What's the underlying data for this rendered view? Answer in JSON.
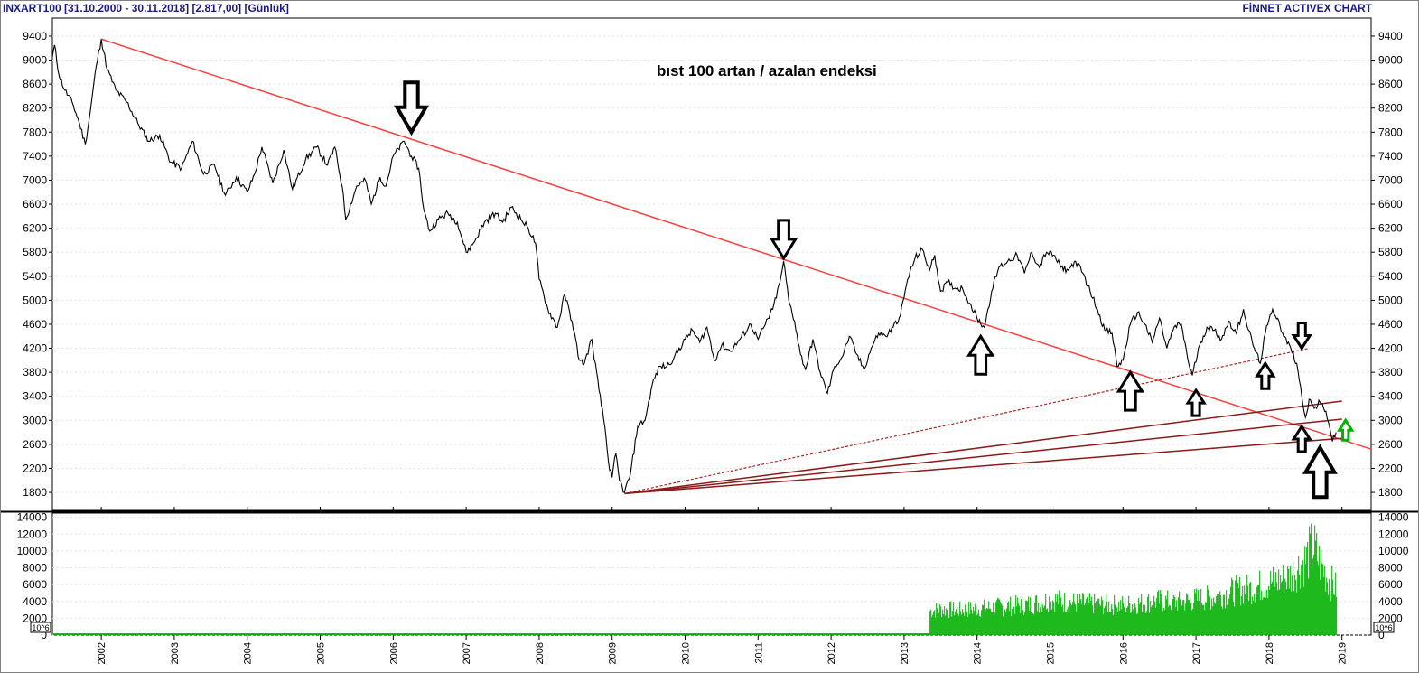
{
  "header": {
    "left_text": "INXART100  [31.10.2000 - 30.11.2018]  [2.817,00]  [Günlük]",
    "right_text": "FİNNET ACTIVEX CHART"
  },
  "chart_data": [
    {
      "type": "line",
      "series_name": "INXART100",
      "annotation": "bıst 100 artan / azalan endeksi",
      "x_unit": "year",
      "xlim": [
        2001.33,
        2019.4
      ],
      "ylim": [
        1500,
        9700
      ],
      "y_ticks": [
        1800,
        2200,
        2600,
        3000,
        3400,
        3800,
        4200,
        4600,
        5000,
        5400,
        5800,
        6200,
        6600,
        7000,
        7400,
        7800,
        8200,
        8600,
        9000,
        9400
      ],
      "x_ticks": [
        "2002",
        "2003",
        "2004",
        "2005",
        "2006",
        "2007",
        "2008",
        "2009",
        "2010",
        "2011",
        "2012",
        "2013",
        "2014",
        "2015",
        "2016",
        "2017",
        "2018",
        "2019"
      ],
      "line_color": "#000000",
      "points": [
        [
          2001.33,
          9050
        ],
        [
          2001.36,
          9250
        ],
        [
          2001.42,
          8750
        ],
        [
          2001.5,
          8500
        ],
        [
          2001.6,
          8300
        ],
        [
          2001.7,
          7950
        ],
        [
          2001.78,
          7600
        ],
        [
          2001.85,
          8150
        ],
        [
          2001.93,
          8900
        ],
        [
          2002.0,
          9350
        ],
        [
          2002.08,
          8850
        ],
        [
          2002.2,
          8500
        ],
        [
          2002.35,
          8300
        ],
        [
          2002.5,
          7950
        ],
        [
          2002.65,
          7650
        ],
        [
          2002.8,
          7750
        ],
        [
          2002.95,
          7300
        ],
        [
          2003.1,
          7200
        ],
        [
          2003.25,
          7650
        ],
        [
          2003.4,
          7100
        ],
        [
          2003.55,
          7250
        ],
        [
          2003.7,
          6750
        ],
        [
          2003.85,
          7050
        ],
        [
          2004.0,
          6800
        ],
        [
          2004.1,
          7100
        ],
        [
          2004.2,
          7550
        ],
        [
          2004.35,
          6950
        ],
        [
          2004.5,
          7500
        ],
        [
          2004.62,
          6850
        ],
        [
          2004.8,
          7350
        ],
        [
          2004.95,
          7550
        ],
        [
          2005.1,
          7250
        ],
        [
          2005.2,
          7550
        ],
        [
          2005.3,
          6900
        ],
        [
          2005.35,
          6350
        ],
        [
          2005.5,
          6900
        ],
        [
          2005.62,
          7000
        ],
        [
          2005.7,
          6600
        ],
        [
          2005.82,
          7050
        ],
        [
          2005.9,
          6900
        ],
        [
          2006.0,
          7400
        ],
        [
          2006.15,
          7650
        ],
        [
          2006.25,
          7400
        ],
        [
          2006.35,
          7200
        ],
        [
          2006.42,
          6500
        ],
        [
          2006.5,
          6150
        ],
        [
          2006.62,
          6350
        ],
        [
          2006.75,
          6450
        ],
        [
          2006.88,
          6300
        ],
        [
          2007.0,
          5800
        ],
        [
          2007.1,
          5950
        ],
        [
          2007.25,
          6300
        ],
        [
          2007.4,
          6450
        ],
        [
          2007.5,
          6300
        ],
        [
          2007.62,
          6550
        ],
        [
          2007.75,
          6350
        ],
        [
          2007.85,
          6200
        ],
        [
          2007.95,
          5950
        ],
        [
          2008.0,
          5350
        ],
        [
          2008.12,
          4850
        ],
        [
          2008.25,
          4550
        ],
        [
          2008.35,
          5100
        ],
        [
          2008.45,
          4650
        ],
        [
          2008.55,
          4000
        ],
        [
          2008.62,
          3950
        ],
        [
          2008.72,
          4350
        ],
        [
          2008.82,
          3500
        ],
        [
          2008.9,
          2900
        ],
        [
          2008.95,
          2300
        ],
        [
          2009.0,
          2050
        ],
        [
          2009.05,
          2450
        ],
        [
          2009.1,
          2000
        ],
        [
          2009.17,
          1800
        ],
        [
          2009.25,
          2100
        ],
        [
          2009.35,
          2900
        ],
        [
          2009.45,
          3000
        ],
        [
          2009.55,
          3600
        ],
        [
          2009.65,
          3900
        ],
        [
          2009.75,
          3900
        ],
        [
          2009.85,
          4050
        ],
        [
          2010.0,
          4350
        ],
        [
          2010.1,
          4500
        ],
        [
          2010.2,
          4300
        ],
        [
          2010.3,
          4550
        ],
        [
          2010.4,
          4000
        ],
        [
          2010.5,
          4250
        ],
        [
          2010.62,
          4150
        ],
        [
          2010.75,
          4350
        ],
        [
          2010.9,
          4600
        ],
        [
          2011.0,
          4350
        ],
        [
          2011.1,
          4600
        ],
        [
          2011.2,
          4850
        ],
        [
          2011.3,
          5300
        ],
        [
          2011.35,
          5650
        ],
        [
          2011.42,
          5000
        ],
        [
          2011.5,
          4650
        ],
        [
          2011.58,
          4100
        ],
        [
          2011.65,
          3850
        ],
        [
          2011.75,
          4350
        ],
        [
          2011.85,
          3800
        ],
        [
          2011.95,
          3450
        ],
        [
          2012.05,
          3900
        ],
        [
          2012.15,
          4050
        ],
        [
          2012.25,
          4400
        ],
        [
          2012.35,
          4100
        ],
        [
          2012.45,
          3850
        ],
        [
          2012.55,
          4200
        ],
        [
          2012.65,
          4450
        ],
        [
          2012.75,
          4400
        ],
        [
          2012.85,
          4550
        ],
        [
          2012.95,
          4750
        ],
        [
          2013.05,
          5350
        ],
        [
          2013.15,
          5700
        ],
        [
          2013.25,
          5850
        ],
        [
          2013.35,
          5500
        ],
        [
          2013.42,
          5750
        ],
        [
          2013.5,
          5150
        ],
        [
          2013.6,
          5300
        ],
        [
          2013.7,
          5200
        ],
        [
          2013.8,
          5200
        ],
        [
          2013.9,
          4950
        ],
        [
          2014.0,
          4700
        ],
        [
          2014.1,
          4550
        ],
        [
          2014.2,
          5150
        ],
        [
          2014.3,
          5550
        ],
        [
          2014.42,
          5650
        ],
        [
          2014.55,
          5750
        ],
        [
          2014.65,
          5450
        ],
        [
          2014.75,
          5800
        ],
        [
          2014.85,
          5550
        ],
        [
          2014.95,
          5800
        ],
        [
          2015.05,
          5750
        ],
        [
          2015.15,
          5550
        ],
        [
          2015.25,
          5500
        ],
        [
          2015.35,
          5650
        ],
        [
          2015.45,
          5450
        ],
        [
          2015.55,
          5150
        ],
        [
          2015.65,
          4850
        ],
        [
          2015.75,
          4500
        ],
        [
          2015.85,
          4450
        ],
        [
          2015.92,
          3900
        ],
        [
          2016.0,
          4000
        ],
        [
          2016.1,
          4600
        ],
        [
          2016.2,
          4800
        ],
        [
          2016.3,
          4600
        ],
        [
          2016.4,
          4300
        ],
        [
          2016.5,
          4700
        ],
        [
          2016.6,
          4200
        ],
        [
          2016.7,
          4550
        ],
        [
          2016.8,
          4600
        ],
        [
          2016.9,
          3950
        ],
        [
          2016.95,
          3750
        ],
        [
          2017.05,
          4250
        ],
        [
          2017.15,
          4550
        ],
        [
          2017.25,
          4500
        ],
        [
          2017.35,
          4350
        ],
        [
          2017.45,
          4650
        ],
        [
          2017.55,
          4450
        ],
        [
          2017.65,
          4850
        ],
        [
          2017.72,
          4500
        ],
        [
          2017.8,
          4200
        ],
        [
          2017.88,
          3950
        ],
        [
          2017.95,
          4450
        ],
        [
          2018.05,
          4850
        ],
        [
          2018.12,
          4700
        ],
        [
          2018.2,
          4400
        ],
        [
          2018.3,
          4200
        ],
        [
          2018.38,
          3950
        ],
        [
          2018.45,
          3400
        ],
        [
          2018.5,
          3050
        ],
        [
          2018.55,
          3350
        ],
        [
          2018.62,
          3200
        ],
        [
          2018.7,
          3300
        ],
        [
          2018.78,
          3150
        ],
        [
          2018.83,
          2900
        ],
        [
          2018.87,
          2650
        ],
        [
          2018.92,
          2800
        ]
      ]
    },
    {
      "type": "bar",
      "series_name": "volume",
      "units_label": "10^6",
      "xlim": [
        2001.33,
        2019.4
      ],
      "ylim": [
        0,
        14500
      ],
      "y_ticks": [
        0,
        2000,
        4000,
        6000,
        8000,
        10000,
        12000,
        14000
      ],
      "bar_color": "#00b000",
      "points": [
        [
          2013.35,
          3400
        ],
        [
          2013.5,
          3600
        ],
        [
          2013.75,
          3500
        ],
        [
          2014.0,
          3700
        ],
        [
          2014.25,
          3900
        ],
        [
          2014.5,
          4100
        ],
        [
          2014.75,
          4300
        ],
        [
          2015.0,
          5000
        ],
        [
          2015.25,
          4600
        ],
        [
          2015.5,
          4400
        ],
        [
          2015.75,
          4200
        ],
        [
          2016.0,
          4200
        ],
        [
          2016.25,
          4500
        ],
        [
          2016.5,
          4800
        ],
        [
          2016.75,
          4600
        ],
        [
          2017.0,
          5000
        ],
        [
          2017.25,
          5300
        ],
        [
          2017.5,
          6100
        ],
        [
          2017.75,
          6500
        ],
        [
          2018.0,
          7300
        ],
        [
          2018.25,
          8000
        ],
        [
          2018.5,
          10500
        ],
        [
          2018.6,
          12500
        ],
        [
          2018.7,
          10000
        ],
        [
          2018.8,
          8000
        ],
        [
          2018.92,
          6500
        ]
      ]
    }
  ],
  "trendlines": [
    {
      "name": "main-downtrend",
      "from": [
        2002.0,
        9350
      ],
      "to": [
        2019.4,
        2520
      ],
      "color": "#ff4040",
      "style": "solid"
    },
    {
      "name": "dotted-support",
      "from": [
        2009.17,
        1780
      ],
      "to": [
        2018.55,
        4200
      ],
      "color": "#b02020",
      "style": "dotted"
    },
    {
      "name": "fan-line-1",
      "from": [
        2009.17,
        1780
      ],
      "to": [
        2019.0,
        3320
      ],
      "color": "#8b1a1a",
      "style": "solid"
    },
    {
      "name": "fan-line-2",
      "from": [
        2009.17,
        1780
      ],
      "to": [
        2019.0,
        3020
      ],
      "color": "#8b1a1a",
      "style": "solid"
    },
    {
      "name": "fan-line-3",
      "from": [
        2009.17,
        1780
      ],
      "to": [
        2019.0,
        2700
      ],
      "color": "#8b1a1a",
      "style": "solid"
    }
  ],
  "arrows": [
    {
      "dir": "down",
      "at": [
        2006.25,
        7800
      ],
      "size": "large",
      "color": "#000000"
    },
    {
      "dir": "down",
      "at": [
        2011.35,
        5700
      ],
      "size": "medium",
      "color": "#000000"
    },
    {
      "dir": "up",
      "at": [
        2014.05,
        4400
      ],
      "size": "medium",
      "color": "#000000"
    },
    {
      "dir": "up",
      "at": [
        2016.1,
        3800
      ],
      "size": "medium",
      "color": "#000000"
    },
    {
      "dir": "up",
      "at": [
        2017.0,
        3500
      ],
      "size": "small",
      "color": "#000000"
    },
    {
      "dir": "up",
      "at": [
        2017.95,
        3950
      ],
      "size": "small",
      "color": "#000000"
    },
    {
      "dir": "down",
      "at": [
        2018.45,
        4200
      ],
      "size": "small",
      "color": "#000000"
    },
    {
      "dir": "up",
      "at": [
        2018.45,
        2900
      ],
      "size": "small",
      "color": "#000000"
    },
    {
      "dir": "up",
      "at": [
        2018.7,
        2550
      ],
      "size": "large",
      "color": "#000000"
    },
    {
      "dir": "up",
      "at": [
        2019.05,
        3000
      ],
      "size": "tiny",
      "color": "#00b000"
    }
  ]
}
